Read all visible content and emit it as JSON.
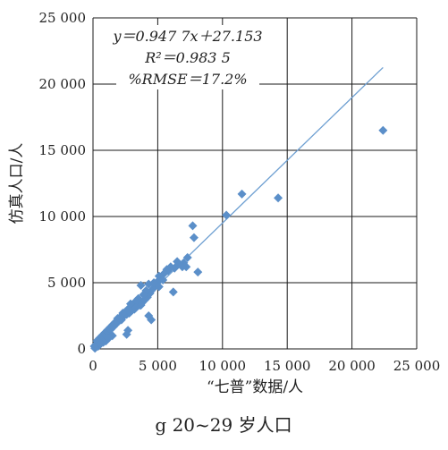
{
  "chart_data": {
    "type": "scatter",
    "xlabel": "“七普”数据/人",
    "ylabel": "仿真人口/人",
    "caption": "g 20~29 岁人口",
    "xlim": [
      0,
      25000
    ],
    "ylim": [
      0,
      25000
    ],
    "x_ticks": [
      0,
      5000,
      10000,
      15000,
      20000,
      25000
    ],
    "y_ticks": [
      0,
      5000,
      10000,
      15000,
      20000,
      25000
    ],
    "x_tick_labels": [
      "0",
      "5 000",
      "10 000",
      "15 000",
      "20 000",
      "25 000"
    ],
    "y_tick_labels": [
      "0",
      "5 000",
      "10 000",
      "15 000",
      "20 000",
      "25 000"
    ],
    "grid": true,
    "marker_color": "#5b8fc9",
    "line_color": "#6fa0d2",
    "annotation": {
      "line1": "y＝0.947 7x＋27.153",
      "line2": "R²＝0.983 5",
      "line3": "%RMSE＝17.2%"
    },
    "trendline": {
      "slope": 0.9477,
      "intercept": 27.153,
      "x_range": [
        0,
        22400
      ]
    },
    "points": [
      [
        22400,
        16500
      ],
      [
        14300,
        11400
      ],
      [
        11500,
        11700
      ],
      [
        10300,
        10100
      ],
      [
        7700,
        9300
      ],
      [
        7800,
        8400
      ],
      [
        8100,
        5800
      ],
      [
        7300,
        6900
      ],
      [
        7000,
        6500
      ],
      [
        6900,
        6200
      ],
      [
        6500,
        6600
      ],
      [
        6200,
        4300
      ],
      [
        6000,
        6200
      ],
      [
        5800,
        5900
      ],
      [
        5700,
        6000
      ],
      [
        5500,
        5700
      ],
      [
        5300,
        5300
      ],
      [
        5100,
        5500
      ],
      [
        5000,
        5100
      ],
      [
        4800,
        4800
      ],
      [
        4700,
        4600
      ],
      [
        4500,
        4400
      ],
      [
        4400,
        4200
      ],
      [
        4300,
        4900
      ],
      [
        4200,
        3900
      ],
      [
        4100,
        4400
      ],
      [
        4000,
        3700
      ],
      [
        3900,
        4100
      ],
      [
        3800,
        3500
      ],
      [
        3700,
        4800
      ],
      [
        3600,
        3300
      ],
      [
        3500,
        3800
      ],
      [
        3400,
        3200
      ],
      [
        3300,
        3600
      ],
      [
        3200,
        3000
      ],
      [
        3100,
        3200
      ],
      [
        3000,
        2900
      ],
      [
        2900,
        3400
      ],
      [
        2800,
        2700
      ],
      [
        2700,
        3000
      ],
      [
        2600,
        2600
      ],
      [
        2500,
        2800
      ],
      [
        2400,
        2500
      ],
      [
        2300,
        2700
      ],
      [
        2200,
        2200
      ],
      [
        2100,
        2400
      ],
      [
        2000,
        2100
      ],
      [
        1900,
        2300
      ],
      [
        1800,
        1900
      ],
      [
        1700,
        2000
      ],
      [
        1600,
        1700
      ],
      [
        1500,
        1800
      ],
      [
        1400,
        1500
      ],
      [
        1300,
        1600
      ],
      [
        1200,
        1300
      ],
      [
        1100,
        1400
      ],
      [
        1000,
        1100
      ],
      [
        900,
        1200
      ],
      [
        800,
        900
      ],
      [
        700,
        1000
      ],
      [
        600,
        700
      ],
      [
        500,
        800
      ],
      [
        400,
        500
      ],
      [
        300,
        600
      ],
      [
        200,
        300
      ],
      [
        100,
        200
      ],
      [
        4300,
        2500
      ],
      [
        4500,
        2200
      ],
      [
        2700,
        1400
      ],
      [
        2600,
        1100
      ],
      [
        3700,
        3300
      ],
      [
        5100,
        4700
      ],
      [
        1000,
        600
      ],
      [
        1200,
        800
      ],
      [
        1500,
        1000
      ],
      [
        800,
        500
      ],
      [
        600,
        400
      ],
      [
        400,
        200
      ],
      [
        200,
        100
      ],
      [
        150,
        50
      ],
      [
        3300,
        3100
      ],
      [
        2900,
        2800
      ],
      [
        4700,
        5000
      ],
      [
        5400,
        5200
      ],
      [
        6300,
        6100
      ],
      [
        7200,
        6200
      ],
      [
        6600,
        6400
      ]
    ]
  }
}
